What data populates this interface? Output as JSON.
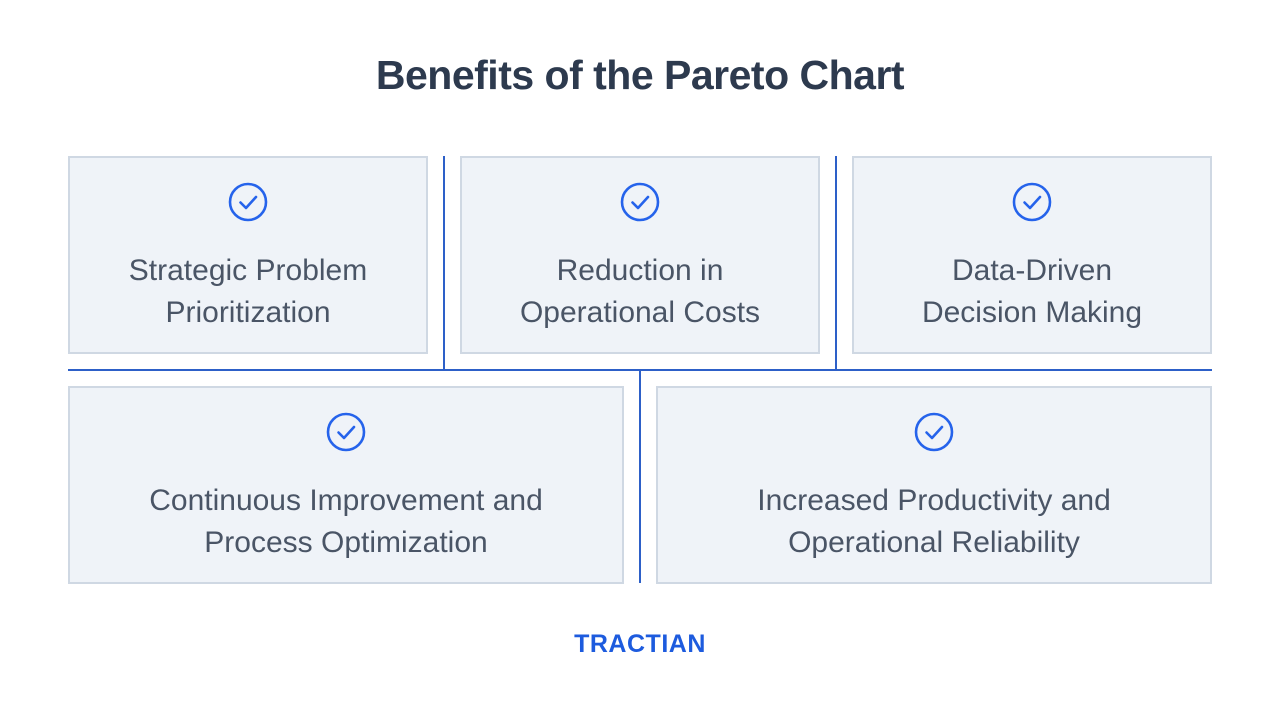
{
  "title": "Benefits of the Pareto Chart",
  "accent_color": "#2563eb",
  "icon": "check-circle-icon",
  "benefits": [
    {
      "line1": "Strategic Problem",
      "line2": "Prioritization"
    },
    {
      "line1": "Reduction in",
      "line2": "Operational Costs"
    },
    {
      "line1": "Data-Driven",
      "line2": "Decision Making"
    },
    {
      "line1": "Continuous Improvement and",
      "line2": "Process Optimization"
    },
    {
      "line1": "Increased Productivity and",
      "line2": "Operational Reliability"
    }
  ],
  "brand": {
    "name": "TRACTIAN",
    "color": "#1d5bde"
  }
}
